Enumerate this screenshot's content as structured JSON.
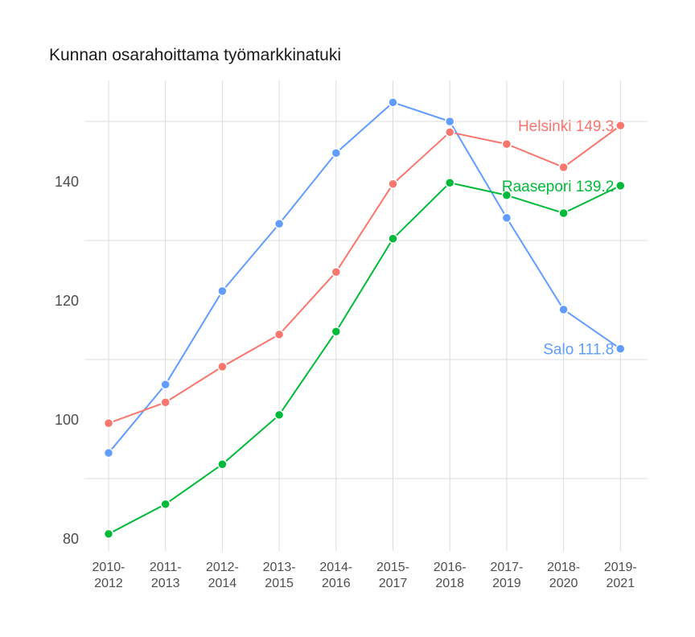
{
  "chart_data": {
    "type": "line",
    "title": "Kunnan osarahoittama työmarkkinatuki",
    "xlabel": "",
    "ylabel": "",
    "categories": [
      "2010-2012",
      "2011-2013",
      "2012-2014",
      "2013-2015",
      "2014-2016",
      "2015-2017",
      "2016-2018",
      "2017-2019",
      "2018-2020",
      "2019-2021"
    ],
    "x_tick_labels": [
      [
        "2010-",
        "2012"
      ],
      [
        "2011-",
        "2013"
      ],
      [
        "2012-",
        "2014"
      ],
      [
        "2013-",
        "2015"
      ],
      [
        "2014-",
        "2016"
      ],
      [
        "2015-",
        "2017"
      ],
      [
        "2016-",
        "2018"
      ],
      [
        "2017-",
        "2019"
      ],
      [
        "2018-",
        "2020"
      ],
      [
        "2019-",
        "2021"
      ]
    ],
    "y_ticks": [
      80,
      100,
      120,
      140
    ],
    "y_minor_gridlines": [
      90,
      110,
      130,
      150
    ],
    "ylim": [
      78.5,
      156.5
    ],
    "grid": true,
    "legend": "none (direct end labels)",
    "series": [
      {
        "name": "Helsinki",
        "color": "#F8766D",
        "values": [
          99.3,
          102.8,
          108.8,
          114.2,
          124.7,
          139.5,
          148.2,
          146.2,
          142.3,
          149.3
        ],
        "end_label": "Helsinki 149.3"
      },
      {
        "name": "Raasepori",
        "color": "#00BA38",
        "values": [
          80.7,
          85.7,
          92.4,
          100.7,
          114.7,
          130.3,
          139.7,
          137.6,
          134.6,
          139.2
        ],
        "end_label": "Raasepori 139.2"
      },
      {
        "name": "Salo",
        "color": "#619CFF",
        "values": [
          94.3,
          105.8,
          121.5,
          132.8,
          144.7,
          153.2,
          150.0,
          133.8,
          118.4,
          111.8
        ],
        "end_label": "Salo 111.8"
      }
    ]
  },
  "colors": {
    "grid": "#dcdcdc",
    "axis_text": "#4d4d4d",
    "title": "#1a1a1a",
    "background": "#ffffff"
  }
}
